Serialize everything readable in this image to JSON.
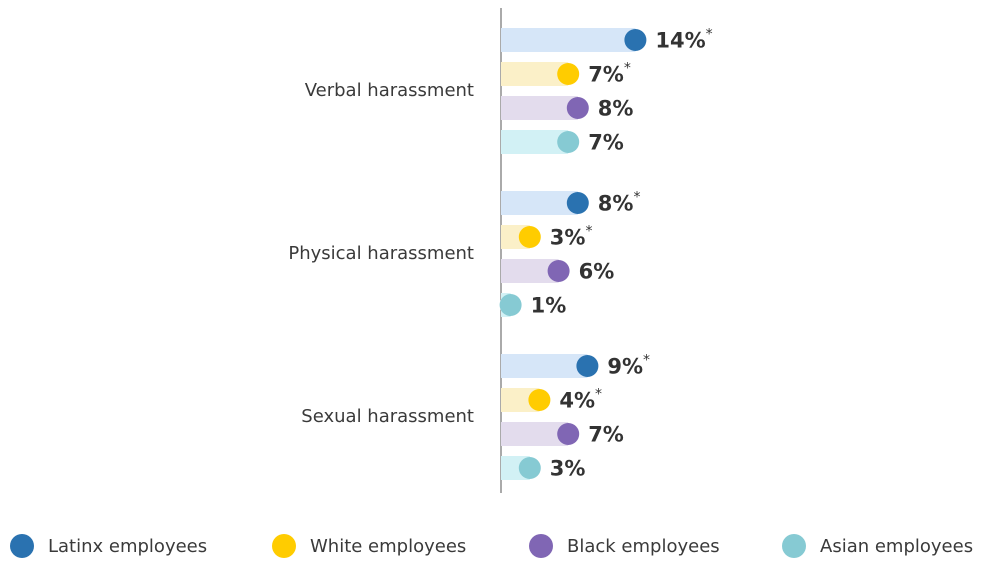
{
  "chart_data": {
    "type": "bar",
    "orientation": "horizontal",
    "style": "lollipop",
    "categories": [
      "Verbal harassment",
      "Physical harassment",
      "Sexual harassment"
    ],
    "series": [
      {
        "name": "Latinx employees",
        "color": "#2a72b0",
        "track_color": "#d6e6f8",
        "values": [
          14,
          8,
          9
        ],
        "labels": [
          "14%",
          "8%",
          "9%"
        ],
        "significant": [
          true,
          true,
          true
        ]
      },
      {
        "name": "White employees",
        "color": "#ffcc00",
        "track_color": "#fbf0c8",
        "values": [
          7,
          3,
          4
        ],
        "labels": [
          "7%",
          "3%",
          "4%"
        ],
        "significant": [
          true,
          true,
          true
        ]
      },
      {
        "name": "Black employees",
        "color": "#8066b4",
        "track_color": "#e3dced",
        "values": [
          8,
          6,
          7
        ],
        "labels": [
          "8%",
          "6%",
          "7%"
        ],
        "significant": [
          false,
          false,
          false
        ]
      },
      {
        "name": "Asian employees",
        "color": "#86cad3",
        "track_color": "#d2f1f5",
        "values": [
          7,
          1,
          3
        ],
        "labels": [
          "7%",
          "1%",
          "3%"
        ],
        "significant": [
          false,
          false,
          false
        ]
      }
    ],
    "significance_marker": "*",
    "legend_position": "bottom",
    "grid": false
  },
  "legend": {
    "items": [
      {
        "label": "Latinx employees",
        "color": "#2a72b0"
      },
      {
        "label": "White employees",
        "color": "#ffcc00"
      },
      {
        "label": "Black employees",
        "color": "#8066b4"
      },
      {
        "label": "Asian employees",
        "color": "#86cad3"
      }
    ]
  }
}
